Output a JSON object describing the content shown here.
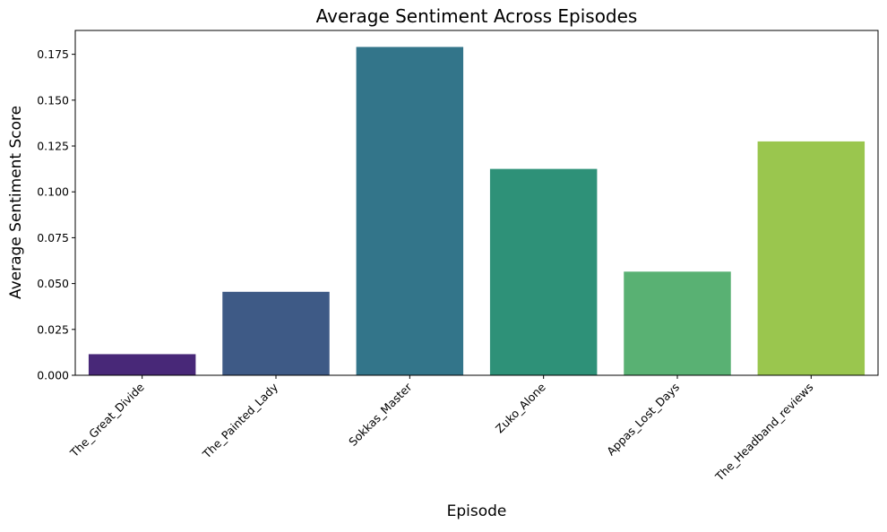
{
  "chart_data": {
    "type": "bar",
    "title": "Average Sentiment Across Episodes",
    "xlabel": "Episode",
    "ylabel": "Average Sentiment Score",
    "categories": [
      "The_Great_Divide",
      "The_Painted_Lady",
      "Sokkas_Master",
      "Zuko_Alone",
      "Appas_Lost_Days",
      "The_Headband_reviews"
    ],
    "values": [
      0.0115,
      0.0455,
      0.179,
      0.1125,
      0.0565,
      0.1275
    ],
    "colors": [
      "#482878",
      "#3e5a86",
      "#33758a",
      "#2e9178",
      "#59b173",
      "#9ac64e"
    ],
    "yticks": [
      0.0,
      0.025,
      0.05,
      0.075,
      0.1,
      0.125,
      0.15,
      0.175
    ],
    "ytick_labels": [
      "0.000",
      "0.025",
      "0.050",
      "0.075",
      "0.100",
      "0.125",
      "0.150",
      "0.175"
    ],
    "ylim": [
      0,
      0.188
    ],
    "grid": false,
    "legend": "none",
    "xtick_rotation": 45
  }
}
